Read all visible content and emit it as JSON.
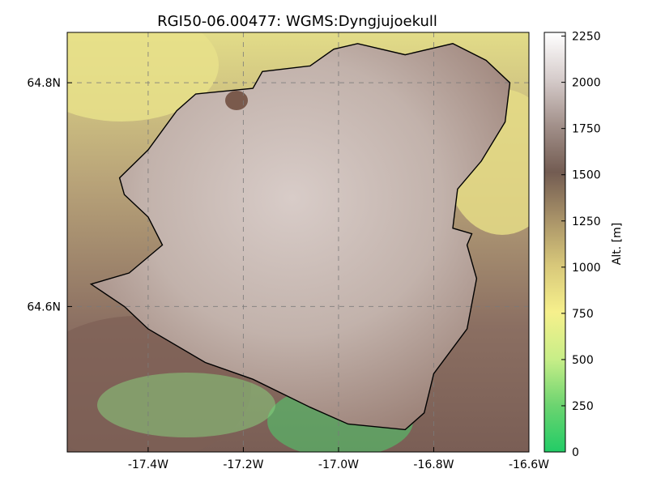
{
  "chart_data": {
    "type": "heatmap",
    "title": "RGI50-06.00477: WGMS:Dyngjujoekull",
    "x_ticks": [
      {
        "value": -17.4,
        "label": "-17.4W"
      },
      {
        "value": -17.2,
        "label": "-17.2W"
      },
      {
        "value": -17.0,
        "label": "-17.0W"
      },
      {
        "value": -16.8,
        "label": "-16.8W"
      },
      {
        "value": -16.6,
        "label": "-16.6W"
      }
    ],
    "y_ticks": [
      {
        "value": 64.8,
        "label": "64.8N"
      },
      {
        "value": 64.6,
        "label": "64.6N"
      }
    ],
    "xlim": [
      -17.57,
      -16.6
    ],
    "ylim": [
      64.47,
      64.845
    ],
    "grid": true,
    "colorbar": {
      "label": "Alt. [m]",
      "range": [
        0,
        2270
      ],
      "ticks": [
        0,
        250,
        500,
        750,
        1000,
        1250,
        1500,
        1750,
        2000,
        2250
      ],
      "colors": [
        "#22cc66",
        "#6cd470",
        "#c8ee88",
        "#f6f08c",
        "#d8c87a",
        "#a89268",
        "#735c52",
        "#a2908a",
        "#d6cccb",
        "#ffffff"
      ]
    },
    "glacier_outline_lonlat": [
      [
        -17.16,
        64.81
      ],
      [
        -17.18,
        64.795
      ],
      [
        -17.3,
        64.79
      ],
      [
        -17.34,
        64.775
      ],
      [
        -17.4,
        64.74
      ],
      [
        -17.46,
        64.715
      ],
      [
        -17.45,
        64.7
      ],
      [
        -17.4,
        64.68
      ],
      [
        -17.37,
        64.655
      ],
      [
        -17.44,
        64.63
      ],
      [
        -17.52,
        64.62
      ],
      [
        -17.45,
        64.6
      ],
      [
        -17.4,
        64.58
      ],
      [
        -17.28,
        64.55
      ],
      [
        -17.18,
        64.535
      ],
      [
        -17.06,
        64.51
      ],
      [
        -16.98,
        64.495
      ],
      [
        -16.86,
        64.49
      ],
      [
        -16.82,
        64.505
      ],
      [
        -16.8,
        64.54
      ],
      [
        -16.73,
        64.58
      ],
      [
        -16.71,
        64.625
      ],
      [
        -16.73,
        64.655
      ],
      [
        -16.72,
        64.665
      ],
      [
        -16.76,
        64.67
      ],
      [
        -16.75,
        64.705
      ],
      [
        -16.7,
        64.73
      ],
      [
        -16.65,
        64.765
      ],
      [
        -16.64,
        64.8
      ],
      [
        -16.69,
        64.82
      ],
      [
        -16.76,
        64.835
      ],
      [
        -16.86,
        64.825
      ],
      [
        -16.96,
        64.835
      ],
      [
        -17.01,
        64.83
      ],
      [
        -17.06,
        64.815
      ],
      [
        -17.16,
        64.81
      ]
    ]
  }
}
